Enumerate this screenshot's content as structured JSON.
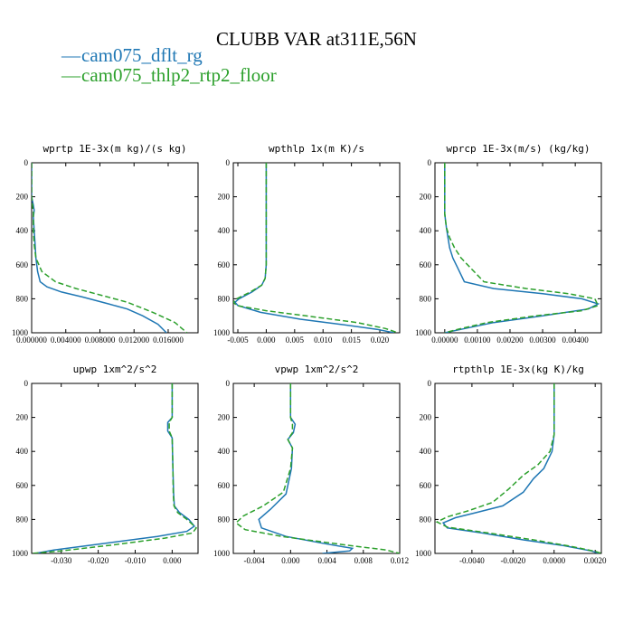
{
  "figure_title": "CLUBB VAR at311E,56N",
  "legend": [
    {
      "label": "cam075_dflt_rg",
      "color": "#1f77b4",
      "dash": "solid"
    },
    {
      "label": "cam075_thlp2_rtp2_floor",
      "color": "#2ca02c",
      "dash": "dashed"
    }
  ],
  "chart_data": [
    {
      "type": "line",
      "title": "wprtp  1E-3x(m kg)/(s kg)",
      "xlim": [
        0.0,
        0.0195
      ],
      "ylim": [
        1000,
        0
      ],
      "xticks": [
        0.0,
        0.004,
        0.008,
        0.012,
        0.016
      ],
      "xtick_labels": [
        "0.000000",
        "0.004000",
        "0.008000",
        "0.012000",
        "0.016000"
      ],
      "yticks": [
        0,
        200,
        400,
        600,
        800,
        1000
      ],
      "series": [
        {
          "name": "cam075_dflt_rg",
          "x": [
            0.0,
            0.0,
            0.0002,
            0.0003,
            0.0002,
            0.0003,
            0.0004,
            0.0005,
            0.0007,
            0.001,
            0.0018,
            0.0035,
            0.006,
            0.009,
            0.0112,
            0.013,
            0.0148,
            0.0158
          ],
          "y": [
            0,
            200,
            250,
            280,
            320,
            400,
            480,
            560,
            640,
            700,
            730,
            760,
            790,
            830,
            860,
            900,
            950,
            1000
          ]
        },
        {
          "name": "cam075_thlp2_rtp2_floor",
          "x": [
            0.0,
            0.0,
            0.0001,
            0.0002,
            0.0002,
            0.0002,
            0.0003,
            0.0005,
            0.0012,
            0.0028,
            0.0052,
            0.0082,
            0.0112,
            0.0142,
            0.0168,
            0.0182
          ],
          "y": [
            0,
            200,
            250,
            290,
            330,
            400,
            480,
            560,
            640,
            700,
            740,
            780,
            820,
            880,
            940,
            1000
          ]
        }
      ]
    },
    {
      "type": "line",
      "title": "wpthlp  1x(m K)/s",
      "xlim": [
        -0.0058,
        0.0235
      ],
      "ylim": [
        1000,
        0
      ],
      "xticks": [
        -0.005,
        0.0,
        0.005,
        0.01,
        0.015,
        0.02
      ],
      "xtick_labels": [
        "-0.005",
        "0.000",
        "0.005",
        "0.010",
        "0.015",
        "0.020"
      ],
      "yticks": [
        0,
        200,
        400,
        600,
        800,
        1000
      ],
      "series": [
        {
          "name": "cam075_dflt_rg",
          "x": [
            0.0,
            0.0,
            0.0,
            -0.0002,
            -0.0008,
            -0.0025,
            -0.0048,
            -0.0055,
            -0.005,
            -0.001,
            0.006,
            0.013,
            0.0195,
            0.0225
          ],
          "y": [
            0,
            300,
            600,
            680,
            720,
            760,
            800,
            820,
            840,
            880,
            920,
            950,
            980,
            1000
          ]
        },
        {
          "name": "cam075_thlp2_rtp2_floor",
          "x": [
            0.0,
            0.0,
            0.0,
            -0.0002,
            -0.0008,
            -0.0028,
            -0.0052,
            -0.0058,
            -0.0052,
            0.0,
            0.008,
            0.016,
            0.021,
            0.0232
          ],
          "y": [
            0,
            300,
            600,
            680,
            720,
            760,
            800,
            820,
            840,
            870,
            905,
            940,
            975,
            1000
          ]
        }
      ]
    },
    {
      "type": "line",
      "title": "wprcp  1E-3x(m/s) (kg/kg)",
      "xlim": [
        -0.0003,
        0.0048
      ],
      "ylim": [
        1000,
        0
      ],
      "xticks": [
        0.0,
        0.001,
        0.002,
        0.003,
        0.004
      ],
      "xtick_labels": [
        "0.00000",
        "0.00100",
        "0.00200",
        "0.00300",
        "0.00400"
      ],
      "yticks": [
        0,
        200,
        400,
        600,
        800,
        1000
      ],
      "series": [
        {
          "name": "cam075_dflt_rg",
          "x": [
            0.0,
            0.0,
            5e-05,
            0.0001,
            0.00015,
            0.00025,
            0.0004,
            0.0006,
            0.0015,
            0.003,
            0.0042,
            0.0047,
            0.0044,
            0.003,
            0.0015,
            0.0005,
            0.0
          ],
          "y": [
            0,
            300,
            380,
            440,
            500,
            560,
            620,
            700,
            740,
            770,
            800,
            830,
            860,
            900,
            940,
            980,
            1000
          ]
        },
        {
          "name": "cam075_thlp2_rtp2_floor",
          "x": [
            0.0,
            0.0,
            5e-05,
            0.00015,
            0.0003,
            0.0005,
            0.0008,
            0.0012,
            0.0025,
            0.0038,
            0.0046,
            0.0047,
            0.0042,
            0.0028,
            0.0013,
            0.0004,
            0.0
          ],
          "y": [
            0,
            300,
            380,
            440,
            500,
            560,
            620,
            700,
            740,
            770,
            800,
            840,
            870,
            900,
            940,
            980,
            1000
          ]
        }
      ]
    },
    {
      "type": "line",
      "title": "upwp  1xm^2/s^2",
      "xlim": [
        -0.038,
        0.007
      ],
      "ylim": [
        1000,
        0
      ],
      "xticks": [
        -0.03,
        -0.02,
        -0.01,
        0.0
      ],
      "xtick_labels": [
        "-0.030",
        "-0.020",
        "-0.010",
        "0.000"
      ],
      "yticks": [
        0,
        200,
        400,
        600,
        800,
        1000
      ],
      "series": [
        {
          "name": "cam075_dflt_rg",
          "x": [
            0.0,
            0.0,
            -0.0012,
            -0.0012,
            0.0,
            0.0002,
            0.0004,
            0.0006,
            0.002,
            0.0045,
            0.006,
            0.004,
            -0.004,
            -0.018,
            -0.032,
            -0.037
          ],
          "y": [
            0,
            200,
            230,
            280,
            320,
            500,
            650,
            720,
            760,
            800,
            840,
            870,
            900,
            940,
            980,
            1000
          ]
        },
        {
          "name": "cam075_thlp2_rtp2_floor",
          "x": [
            0.0,
            0.0,
            -0.0008,
            -0.0008,
            0.0,
            0.0002,
            0.0003,
            0.0005,
            0.0015,
            0.004,
            0.0065,
            0.0055,
            -0.002,
            -0.016,
            -0.03,
            -0.038
          ],
          "y": [
            0,
            200,
            230,
            280,
            320,
            500,
            650,
            720,
            760,
            800,
            850,
            880,
            910,
            950,
            985,
            1000
          ]
        }
      ]
    },
    {
      "type": "line",
      "title": "vpwp  1xm^2/s^2",
      "xlim": [
        -0.0063,
        0.012
      ],
      "ylim": [
        1000,
        0
      ],
      "xticks": [
        -0.004,
        0.0,
        0.004,
        0.008,
        0.012
      ],
      "xtick_labels": [
        "-0.004",
        "0.000",
        "0.004",
        "0.008",
        "0.012"
      ],
      "yticks": [
        0,
        200,
        400,
        600,
        800,
        1000
      ],
      "series": [
        {
          "name": "cam075_dflt_rg",
          "x": [
            0.0,
            0.0,
            0.0005,
            0.0003,
            -0.0003,
            0.0002,
            0.0001,
            -0.0005,
            -0.0022,
            -0.0035,
            -0.0032,
            -0.0005,
            0.0035,
            0.0068,
            0.0065,
            0.0035
          ],
          "y": [
            0,
            200,
            240,
            290,
            330,
            380,
            500,
            650,
            740,
            800,
            850,
            900,
            940,
            970,
            985,
            1000
          ]
        },
        {
          "name": "cam075_thlp2_rtp2_floor",
          "x": [
            0.0,
            0.0,
            0.0002,
            0.0002,
            -0.0003,
            0.0002,
            0.0,
            -0.0008,
            -0.003,
            -0.0052,
            -0.006,
            -0.005,
            -0.001,
            0.006,
            0.0105,
            0.012
          ],
          "y": [
            0,
            200,
            240,
            290,
            330,
            380,
            500,
            640,
            720,
            780,
            820,
            860,
            900,
            950,
            980,
            1000
          ]
        }
      ]
    },
    {
      "type": "line",
      "title": "rtpthlp  1E-3x(kg K)/kg",
      "xlim": [
        -0.0058,
        0.0023
      ],
      "ylim": [
        1000,
        0
      ],
      "xticks": [
        -0.004,
        -0.002,
        0.0,
        0.002
      ],
      "xtick_labels": [
        "-0.0040",
        "-0.0020",
        "0.0000",
        "0.0020"
      ],
      "yticks": [
        0,
        200,
        400,
        600,
        800,
        1000
      ],
      "series": [
        {
          "name": "cam075_dflt_rg",
          "x": [
            0.0,
            0.0,
            -0.0001,
            -0.0005,
            -0.001,
            -0.0015,
            -0.0025,
            -0.0038,
            -0.0048,
            -0.0054,
            -0.0052,
            -0.0035,
            -0.0015,
            0.0005,
            0.0018,
            0.0022
          ],
          "y": [
            0,
            300,
            400,
            500,
            560,
            640,
            720,
            760,
            790,
            820,
            850,
            880,
            920,
            955,
            985,
            1000
          ]
        },
        {
          "name": "cam075_thlp2_rtp2_floor",
          "x": [
            0.0,
            0.0,
            -0.0002,
            -0.0008,
            -0.0015,
            -0.0022,
            -0.003,
            -0.0042,
            -0.0052,
            -0.0057,
            -0.0052,
            -0.0032,
            -0.001,
            0.0008,
            0.002,
            0.0023
          ],
          "y": [
            0,
            300,
            400,
            480,
            540,
            620,
            700,
            750,
            785,
            815,
            845,
            880,
            920,
            958,
            988,
            1000
          ]
        }
      ]
    }
  ]
}
